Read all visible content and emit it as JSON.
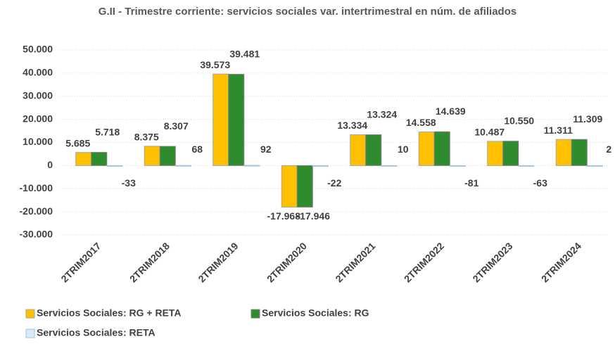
{
  "chart_data": {
    "type": "bar",
    "title": "G.II - Trimestre corriente: servicios sociales var. intertrimestral en núm. de afiliados",
    "categories": [
      "2TRIM2017",
      "2TRIM2018",
      "2TRIM2019",
      "2TRIM2020",
      "2TRIM2021",
      "2TRIM2022",
      "2TRIM2023",
      "2TRIM2024"
    ],
    "series": [
      {
        "name": "Servicios Sociales: RG + RETA",
        "color": "#ffc000",
        "values": [
          5685,
          8375,
          39573,
          -17968,
          13334,
          14558,
          10487,
          11311
        ],
        "value_labels": [
          "5.685",
          "8.375",
          "39.573",
          "-17.968",
          "13.334",
          "14.558",
          "10.487",
          "11.311"
        ]
      },
      {
        "name": "Servicios Sociales: RG",
        "color": "#2e8b2e",
        "values": [
          5718,
          8307,
          39481,
          -17946,
          13324,
          14639,
          10550,
          11309
        ],
        "value_labels": [
          "5.718",
          "8.307",
          "39.481",
          "-17.946",
          "13.324",
          "14.639",
          "10.550",
          "11.309"
        ]
      },
      {
        "name": "Servicios Sociales: RETA",
        "color": "#dbe9f7",
        "values": [
          -33,
          68,
          92,
          -22,
          10,
          -81,
          -63,
          2
        ],
        "value_labels": [
          "-33",
          "68",
          "92",
          "-22",
          "10",
          "-81",
          "-63",
          "2"
        ]
      }
    ],
    "ylim": [
      -30000,
      50000
    ],
    "yticks": [
      {
        "value": -30000,
        "label": "-30.000"
      },
      {
        "value": -20000,
        "label": "-20.000"
      },
      {
        "value": -10000,
        "label": "-10.000"
      },
      0,
      {
        "value": 10000,
        "label": "10.000"
      },
      {
        "value": 20000,
        "label": "20.000"
      },
      {
        "value": 30000,
        "label": "30.000"
      },
      {
        "value": 40000,
        "label": "40.000"
      },
      {
        "value": 50000,
        "label": "50.000"
      }
    ],
    "grid": true,
    "legend": "bottom"
  }
}
